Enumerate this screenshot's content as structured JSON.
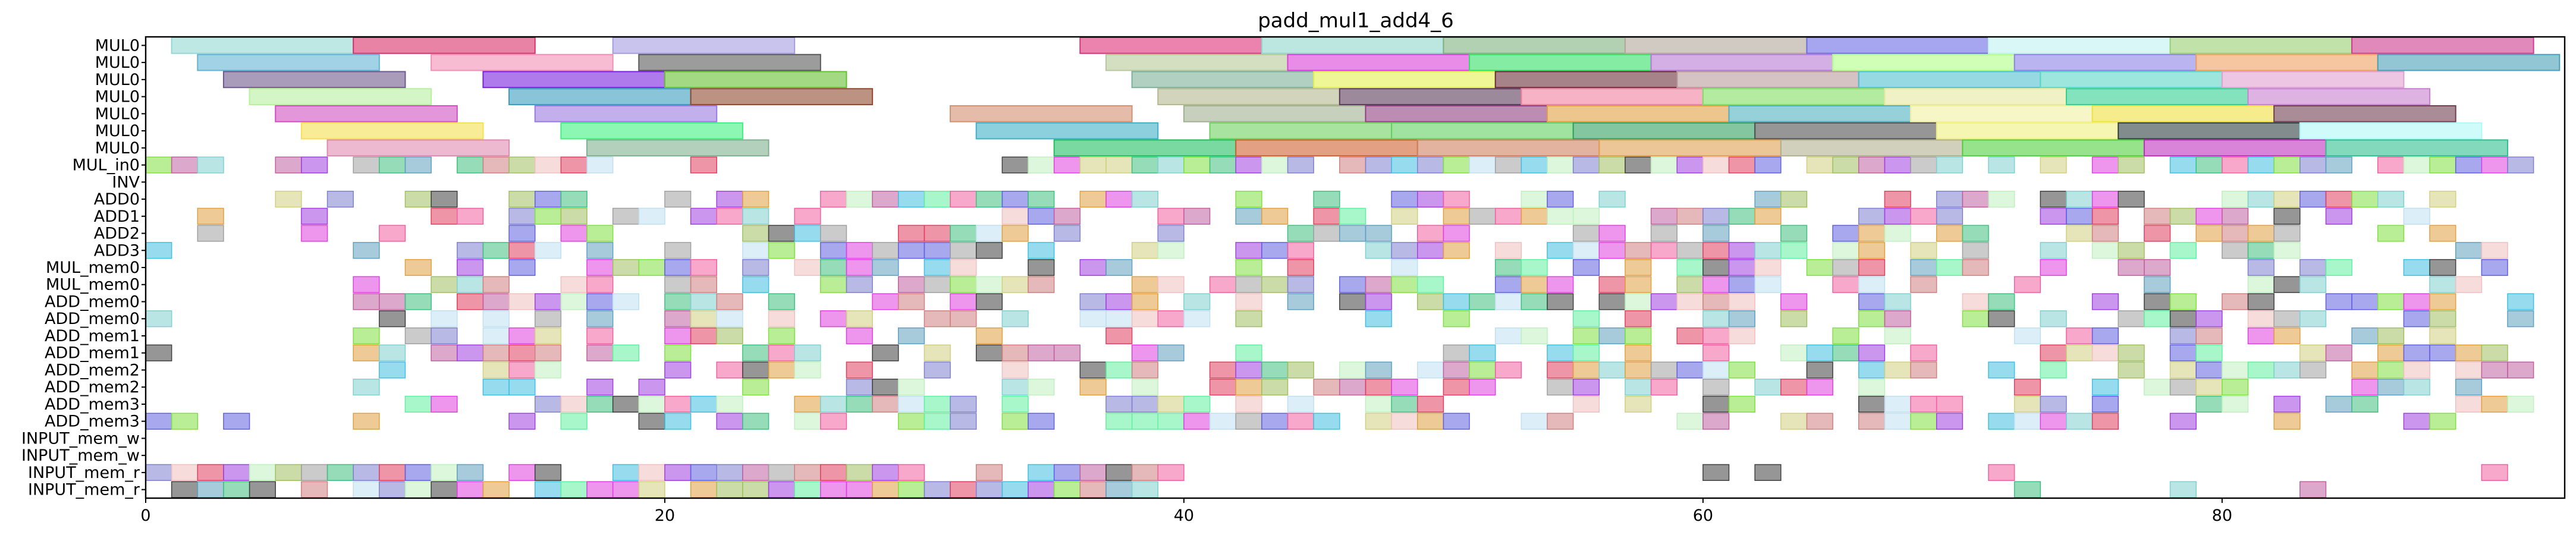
{
  "chart_data": {
    "type": "gantt",
    "title": "padd_mul1_add4_6",
    "xlim": [
      0,
      93.2
    ],
    "xticks": [
      "0",
      "20",
      "40",
      "60",
      "80"
    ],
    "xtick_values": [
      0,
      20,
      40,
      60,
      80
    ],
    "rows": [
      "MUL0",
      "MUL0",
      "MUL0",
      "MUL0",
      "MUL0",
      "MUL0",
      "MUL0",
      "MUL_in0",
      "INV",
      "ADD0",
      "ADD1",
      "ADD2",
      "ADD3",
      "MUL_mem0",
      "MUL_mem0",
      "ADD_mem0",
      "ADD_mem0",
      "ADD_mem1",
      "ADD_mem1",
      "ADD_mem2",
      "ADD_mem2",
      "ADD_mem3",
      "ADD_mem3",
      "INPUT_mem_w",
      "INPUT_mem_w",
      "INPUT_mem_r",
      "INPUT_mem_r"
    ],
    "mul_bars": [
      {
        "row": 0,
        "start": 1,
        "end": 8,
        "color": "#93d8d2"
      },
      {
        "row": 0,
        "start": 8,
        "end": 15,
        "color": "#d9316b"
      },
      {
        "row": 0,
        "start": 18,
        "end": 25,
        "color": "#a59ce2"
      },
      {
        "row": 0,
        "start": 36,
        "end": 43,
        "color": "#e0307a"
      },
      {
        "row": 0,
        "start": 43,
        "end": 50,
        "color": "#8fd6cc"
      },
      {
        "row": 0,
        "start": 50,
        "end": 57,
        "color": "#7fb07f"
      },
      {
        "row": 0,
        "start": 57,
        "end": 64,
        "color": "#b3a79a"
      },
      {
        "row": 0,
        "start": 64,
        "end": 71,
        "color": "#6b6be6"
      },
      {
        "row": 0,
        "start": 71,
        "end": 78,
        "color": "#bff2f2"
      },
      {
        "row": 0,
        "start": 78,
        "end": 85,
        "color": "#98cf6f"
      },
      {
        "row": 0,
        "start": 85,
        "end": 92,
        "color": "#cf3b8f"
      },
      {
        "row": 1,
        "start": 2,
        "end": 9,
        "color": "#62b4d6"
      },
      {
        "row": 1,
        "start": 11,
        "end": 18,
        "color": "#f28fb4"
      },
      {
        "row": 1,
        "start": 19,
        "end": 26,
        "color": "#5a5a5a"
      },
      {
        "row": 1,
        "start": 37,
        "end": 44,
        "color": "#b7c99a"
      },
      {
        "row": 1,
        "start": 44,
        "end": 51,
        "color": "#d93fd9"
      },
      {
        "row": 1,
        "start": 51,
        "end": 58,
        "color": "#33e066"
      },
      {
        "row": 1,
        "start": 58,
        "end": 65,
        "color": "#b57ad6"
      },
      {
        "row": 1,
        "start": 65,
        "end": 72,
        "color": "#b0ff86"
      },
      {
        "row": 1,
        "start": 72,
        "end": 79,
        "color": "#8c84e6"
      },
      {
        "row": 1,
        "start": 79,
        "end": 86,
        "color": "#f0a060"
      },
      {
        "row": 1,
        "start": 86,
        "end": 93,
        "color": "#4aa0b8"
      },
      {
        "row": 2,
        "start": 3,
        "end": 10,
        "color": "#6e5a8c"
      },
      {
        "row": 2,
        "start": 13,
        "end": 20,
        "color": "#7a22e0"
      },
      {
        "row": 2,
        "start": 20,
        "end": 27,
        "color": "#66c030"
      },
      {
        "row": 2,
        "start": 38,
        "end": 45,
        "color": "#7fb09a"
      },
      {
        "row": 2,
        "start": 45,
        "end": 52,
        "color": "#e2f050"
      },
      {
        "row": 2,
        "start": 52,
        "end": 59,
        "color": "#6b2e3a"
      },
      {
        "row": 2,
        "start": 59,
        "end": 66,
        "color": "#b99a9a"
      },
      {
        "row": 2,
        "start": 66,
        "end": 73,
        "color": "#50c0d0"
      },
      {
        "row": 2,
        "start": 73,
        "end": 80,
        "color": "#5cd6c8"
      },
      {
        "row": 2,
        "start": 80,
        "end": 87,
        "color": "#e0a0d0"
      },
      {
        "row": 3,
        "start": 4,
        "end": 11,
        "color": "#b8f0a0"
      },
      {
        "row": 3,
        "start": 14,
        "end": 21,
        "color": "#3a9cc0"
      },
      {
        "row": 3,
        "start": 21,
        "end": 28,
        "color": "#904a30"
      },
      {
        "row": 3,
        "start": 39,
        "end": 46,
        "color": "#b5b890"
      },
      {
        "row": 3,
        "start": 46,
        "end": 53,
        "color": "#5a3a5a"
      },
      {
        "row": 3,
        "start": 53,
        "end": 60,
        "color": "#f080a0"
      },
      {
        "row": 3,
        "start": 60,
        "end": 67,
        "color": "#80e060"
      },
      {
        "row": 3,
        "start": 67,
        "end": 74,
        "color": "#e8e8a0"
      },
      {
        "row": 3,
        "start": 74,
        "end": 81,
        "color": "#30d090"
      },
      {
        "row": 3,
        "start": 81,
        "end": 88,
        "color": "#c880d0"
      },
      {
        "row": 4,
        "start": 5,
        "end": 12,
        "color": "#d050c0"
      },
      {
        "row": 4,
        "start": 15,
        "end": 22,
        "color": "#9a7ae0"
      },
      {
        "row": 4,
        "start": 31,
        "end": 38,
        "color": "#d49070"
      },
      {
        "row": 4,
        "start": 40,
        "end": 47,
        "color": "#a0b090"
      },
      {
        "row": 4,
        "start": 47,
        "end": 54,
        "color": "#904080"
      },
      {
        "row": 4,
        "start": 54,
        "end": 61,
        "color": "#e0a040"
      },
      {
        "row": 4,
        "start": 61,
        "end": 68,
        "color": "#50b0c0"
      },
      {
        "row": 4,
        "start": 68,
        "end": 75,
        "color": "#f0f0a0"
      },
      {
        "row": 4,
        "start": 75,
        "end": 82,
        "color": "#f0e040"
      },
      {
        "row": 4,
        "start": 82,
        "end": 89,
        "color": "#704050"
      },
      {
        "row": 5,
        "start": 6,
        "end": 13,
        "color": "#f5e050"
      },
      {
        "row": 5,
        "start": 16,
        "end": 23,
        "color": "#40f080"
      },
      {
        "row": 5,
        "start": 32,
        "end": 39,
        "color": "#40b0c8"
      },
      {
        "row": 5,
        "start": 41,
        "end": 48,
        "color": "#70d060"
      },
      {
        "row": 5,
        "start": 48,
        "end": 55,
        "color": "#60d060"
      },
      {
        "row": 5,
        "start": 55,
        "end": 62,
        "color": "#30a060"
      },
      {
        "row": 5,
        "start": 62,
        "end": 69,
        "color": "#505050"
      },
      {
        "row": 5,
        "start": 69,
        "end": 76,
        "color": "#f0f080"
      },
      {
        "row": 5,
        "start": 76,
        "end": 83,
        "color": "#304040"
      },
      {
        "row": 5,
        "start": 83,
        "end": 90,
        "color": "#b0f8f8"
      },
      {
        "row": 6,
        "start": 7,
        "end": 14,
        "color": "#e08ab0"
      },
      {
        "row": 6,
        "start": 17,
        "end": 24,
        "color": "#80b090"
      },
      {
        "row": 6,
        "start": 35,
        "end": 42,
        "color": "#20c060"
      },
      {
        "row": 6,
        "start": 42,
        "end": 49,
        "color": "#d06030"
      },
      {
        "row": 6,
        "start": 49,
        "end": 56,
        "color": "#d08060"
      },
      {
        "row": 6,
        "start": 56,
        "end": 63,
        "color": "#e0a050"
      },
      {
        "row": 6,
        "start": 63,
        "end": 70,
        "color": "#b0b090"
      },
      {
        "row": 6,
        "start": 70,
        "end": 77,
        "color": "#50d040"
      },
      {
        "row": 6,
        "start": 77,
        "end": 84,
        "color": "#c030c0"
      },
      {
        "row": 6,
        "start": 84,
        "end": 91,
        "color": "#30c090"
      }
    ],
    "x_label": "",
    "y_label": ""
  }
}
